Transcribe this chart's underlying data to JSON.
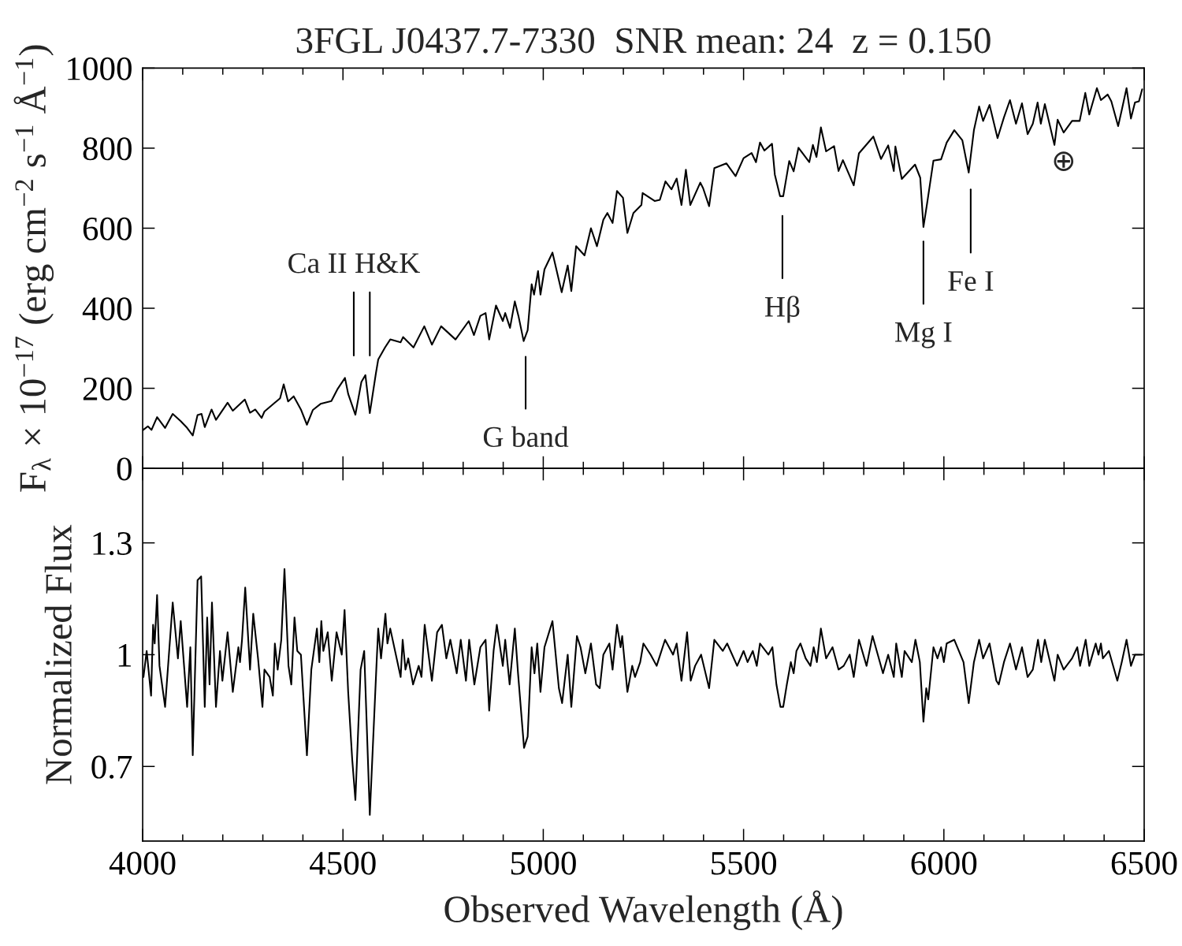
{
  "chart_data": [
    {
      "type": "line",
      "title": "3FGL J0437.7-7330  SNR mean: 24  z = 0.150",
      "ylabel": "F$_{λ}$ × 10$^{−17}$ (erg cm$^{−2}$ s$^{−1}$ Å$^{−1}$)",
      "xlim": [
        4000,
        6500
      ],
      "xticks": [
        4000,
        {
          "value": 4100,
          "label": null
        },
        {
          "value": 4200,
          "label": null
        },
        {
          "value": 4300,
          "label": null
        },
        {
          "value": 4400,
          "label": null
        },
        4500,
        {
          "value": 4600,
          "label": null
        },
        {
          "value": 4700,
          "label": null
        },
        {
          "value": 4800,
          "label": null
        },
        {
          "value": 4900,
          "label": null
        },
        5000,
        {
          "value": 5100,
          "label": null
        },
        {
          "value": 5200,
          "label": null
        },
        {
          "value": 5300,
          "label": null
        },
        {
          "value": 5400,
          "label": null
        },
        5500,
        {
          "value": 5600,
          "label": null
        },
        {
          "value": 5700,
          "label": null
        },
        {
          "value": 5800,
          "label": null
        },
        {
          "value": 5900,
          "label": null
        },
        6000,
        {
          "value": 6100,
          "label": null
        },
        {
          "value": 6200,
          "label": null
        },
        {
          "value": 6300,
          "label": null
        },
        {
          "value": 6400,
          "label": null
        },
        6500
      ],
      "ylim": [
        0,
        1000
      ],
      "yticks": [
        0,
        200,
        400,
        600,
        800,
        1000
      ],
      "tick_labels": "y",
      "series": [
        {
          "color": "#000000",
          "x": [
            4000,
            4013,
            4022,
            4036,
            4056,
            4075,
            4095,
            4111,
            4125,
            4137,
            4147,
            4155,
            4172,
            4183,
            4212,
            4225,
            4255,
            4268,
            4281,
            4297,
            4304,
            4330,
            4343,
            4352,
            4363,
            4377,
            4395,
            4410,
            4425,
            4444,
            4471,
            4487,
            4505,
            4513,
            4531,
            4546,
            4556,
            4567,
            4582,
            4588,
            4605,
            4618,
            4644,
            4650,
            4676,
            4703,
            4722,
            4745,
            4781,
            4814,
            4827,
            4843,
            4856,
            4865,
            4882,
            4899,
            4905,
            4917,
            4929,
            4938,
            4951,
            4961,
            4971,
            4977,
            4987,
            4993,
            5003,
            5023,
            5046,
            5061,
            5070,
            5082,
            5103,
            5119,
            5134,
            5150,
            5160,
            5173,
            5184,
            5199,
            5210,
            5225,
            5245,
            5248,
            5278,
            5291,
            5305,
            5320,
            5333,
            5345,
            5356,
            5367,
            5392,
            5399,
            5414,
            5427,
            5457,
            5480,
            5500,
            5520,
            5531,
            5541,
            5552,
            5571,
            5578,
            5591,
            5599,
            5614,
            5625,
            5637,
            5664,
            5673,
            5682,
            5693,
            5706,
            5726,
            5737,
            5748,
            5775,
            5788,
            5824,
            5843,
            5861,
            5875,
            5879,
            5895,
            5928,
            5941,
            5949,
            5958,
            5974,
            5993,
            6007,
            6026,
            6046,
            6062,
            6075,
            6088,
            6098,
            6114,
            6134,
            6150,
            6165,
            6180,
            6195,
            6209,
            6222,
            6234,
            6242,
            6252,
            6276,
            6284,
            6299,
            6320,
            6339,
            6353,
            6363,
            6382,
            6392,
            6409,
            6418,
            6435,
            6444,
            6456,
            6467,
            6477,
            6487,
            6495
          ],
          "values": [
            95,
            105,
            96,
            128,
            101,
            136,
            118,
            101,
            82,
            133,
            136,
            103,
            147,
            121,
            164,
            144,
            172,
            139,
            147,
            126,
            142,
            164,
            175,
            210,
            167,
            180,
            147,
            109,
            146,
            161,
            168,
            199,
            226,
            186,
            134,
            216,
            233,
            138,
            236,
            272,
            302,
            322,
            315,
            328,
            302,
            355,
            309,
            355,
            322,
            368,
            333,
            381,
            388,
            322,
            407,
            368,
            388,
            351,
            417,
            381,
            318,
            345,
            460,
            434,
            493,
            434,
            497,
            539,
            440,
            507,
            443,
            555,
            532,
            600,
            555,
            621,
            638,
            613,
            693,
            676,
            588,
            638,
            658,
            688,
            668,
            671,
            717,
            697,
            724,
            658,
            746,
            658,
            714,
            700,
            655,
            750,
            762,
            730,
            775,
            788,
            765,
            814,
            794,
            811,
            734,
            680,
            680,
            768,
            742,
            801,
            765,
            808,
            778,
            852,
            792,
            805,
            743,
            770,
            707,
            787,
            829,
            773,
            807,
            743,
            804,
            723,
            759,
            726,
            603,
            661,
            769,
            772,
            814,
            845,
            820,
            739,
            845,
            904,
            868,
            908,
            825,
            877,
            920,
            861,
            912,
            835,
            861,
            914,
            861,
            910,
            808,
            871,
            839,
            868,
            868,
            938,
            884,
            950,
            920,
            934,
            917,
            855,
            895,
            950,
            874,
            914,
            917,
            947
          ]
        },
        {
          "type": "line",
          "color": "#000000",
          "x": [
            4527,
            4527
          ],
          "values": [
            282,
            440
          ]
        },
        {
          "type": "line",
          "color": "#000000",
          "x": [
            4567,
            4567
          ],
          "values": [
            282,
            440
          ]
        },
        {
          "type": "line",
          "color": "#000000",
          "x": [
            4956,
            4956
          ],
          "values": [
            149,
            279
          ]
        },
        {
          "type": "line",
          "color": "#000000",
          "x": [
            5597,
            5597
          ],
          "values": [
            475,
            631
          ]
        },
        {
          "type": "line",
          "color": "#000000",
          "x": [
            5949,
            5949
          ],
          "values": [
            411,
            567
          ]
        },
        {
          "type": "line",
          "color": "#000000",
          "x": [
            6067,
            6067
          ],
          "values": [
            539,
            697
          ]
        }
      ],
      "annotations": [
        {
          "text": "Ca II H&K",
          "x": 4527,
          "y": 440
        },
        {
          "text": "G band",
          "x": 4956,
          "y": 149
        },
        {
          "text": "Hβ",
          "x": 5597,
          "y": 475
        },
        {
          "text": "Mg I",
          "x": 5949,
          "y": 411
        },
        {
          "text": "Fe I",
          "x": 6067,
          "y": 539
        },
        {
          "text": "⊕",
          "x": 6299,
          "y": 839
        }
      ]
    },
    {
      "type": "line",
      "xlabel": "Observed Wavelength (Å)",
      "ylabel": "Normalized Flux",
      "xlim": [
        4000,
        6500
      ],
      "xticks": [
        4000,
        {
          "value": 4100,
          "label": null
        },
        {
          "value": 4200,
          "label": null
        },
        {
          "value": 4300,
          "label": null
        },
        {
          "value": 4400,
          "label": null
        },
        4500,
        {
          "value": 4600,
          "label": null
        },
        {
          "value": 4700,
          "label": null
        },
        {
          "value": 4800,
          "label": null
        },
        {
          "value": 4900,
          "label": null
        },
        5000,
        {
          "value": 5100,
          "label": null
        },
        {
          "value": 5200,
          "label": null
        },
        {
          "value": 5300,
          "label": null
        },
        {
          "value": 5400,
          "label": null
        },
        5500,
        {
          "value": 5600,
          "label": null
        },
        {
          "value": 5700,
          "label": null
        },
        {
          "value": 5800,
          "label": null
        },
        {
          "value": 5900,
          "label": null
        },
        6000,
        {
          "value": 6100,
          "label": null
        },
        {
          "value": 6200,
          "label": null
        },
        {
          "value": 6300,
          "label": null
        },
        {
          "value": 6400,
          "label": null
        },
        6500
      ],
      "ylim": [
        0.5,
        1.5
      ],
      "yticks": [
        0.7,
        1,
        1.3
      ],
      "series": [
        {
          "color": "#000000",
          "x": [
            4002,
            4010,
            4021,
            4026,
            4030,
            4036,
            4042,
            4056,
            4075,
            4088,
            4095,
            4111,
            4119,
            4125,
            4137,
            4146,
            4155,
            4161,
            4167,
            4173,
            4183,
            4193,
            4199,
            4212,
            4225,
            4239,
            4243,
            4248,
            4256,
            4268,
            4276,
            4288,
            4299,
            4304,
            4317,
            4325,
            4330,
            4337,
            4346,
            4354,
            4364,
            4371,
            4379,
            4386,
            4395,
            4410,
            4421,
            4435,
            4441,
            4446,
            4451,
            4462,
            4472,
            4484,
            4497,
            4504,
            4513,
            4523,
            4531,
            4544,
            4553,
            4567,
            4584,
            4588,
            4595,
            4606,
            4611,
            4618,
            4644,
            4649,
            4656,
            4663,
            4675,
            4689,
            4696,
            4704,
            4722,
            4735,
            4747,
            4758,
            4768,
            4784,
            4794,
            4807,
            4815,
            4828,
            4843,
            4856,
            4865,
            4876,
            4884,
            4899,
            4905,
            4916,
            4929,
            4937,
            4952,
            4961,
            4971,
            4978,
            4985,
            4993,
            5003,
            5023,
            5039,
            5047,
            5061,
            5070,
            5084,
            5093,
            5105,
            5119,
            5132,
            5141,
            5150,
            5165,
            5173,
            5184,
            5193,
            5197,
            5210,
            5222,
            5229,
            5242,
            5250,
            5268,
            5283,
            5304,
            5324,
            5333,
            5345,
            5359,
            5368,
            5379,
            5394,
            5414,
            5427,
            5448,
            5459,
            5484,
            5500,
            5510,
            5523,
            5533,
            5541,
            5562,
            5572,
            5582,
            5592,
            5599,
            5608,
            5618,
            5625,
            5632,
            5642,
            5655,
            5667,
            5675,
            5683,
            5693,
            5706,
            5722,
            5737,
            5750,
            5765,
            5775,
            5788,
            5807,
            5822,
            5848,
            5861,
            5875,
            5881,
            5895,
            5902,
            5920,
            5929,
            5940,
            5949,
            5956,
            5961,
            5974,
            5984,
            5993,
            6000,
            6007,
            6026,
            6049,
            6062,
            6075,
            6088,
            6098,
            6114,
            6131,
            6137,
            6150,
            6165,
            6180,
            6195,
            6209,
            6222,
            6235,
            6243,
            6252,
            6276,
            6284,
            6299,
            6320,
            6333,
            6340,
            6354,
            6363,
            6379,
            6386,
            6392,
            6397,
            6412,
            6433,
            6444,
            6456,
            6467,
            6477,
            6494
          ],
          "values": [
            0.94,
            1.01,
            0.89,
            1.08,
            1.03,
            1.16,
            0.97,
            0.86,
            1.14,
            0.99,
            1.09,
            0.86,
            1.02,
            0.73,
            1.2,
            1.21,
            0.86,
            1.1,
            0.92,
            1.14,
            0.86,
            1.01,
            0.93,
            1.06,
            0.9,
            1.02,
            0.98,
            1.04,
            1.18,
            0.96,
            1.11,
            0.99,
            0.86,
            0.96,
            0.94,
            0.89,
            1.03,
            0.96,
            1.04,
            1.23,
            0.97,
            0.92,
            1.1,
            1.01,
            1.0,
            0.73,
            0.96,
            1.07,
            0.98,
            1.09,
            1.01,
            1.06,
            0.93,
            1.06,
            1.0,
            1.12,
            0.9,
            0.72,
            0.61,
            0.96,
            1.01,
            0.57,
            0.98,
            1.07,
            0.99,
            1.11,
            1.03,
            1.07,
            0.94,
            1.04,
            0.96,
            0.99,
            0.92,
            0.97,
            0.94,
            1.08,
            0.93,
            1.06,
            1.08,
            0.99,
            1.04,
            0.95,
            1.04,
            0.93,
            1.04,
            0.92,
            1.02,
            1.04,
            0.85,
            1.01,
            1.08,
            0.97,
            1.04,
            0.92,
            1.07,
            0.95,
            0.75,
            0.78,
            1.02,
            0.95,
            1.03,
            0.9,
            1.02,
            1.09,
            0.91,
            0.87,
            1.0,
            0.86,
            1.05,
            1.02,
            0.95,
            1.03,
            0.92,
            0.91,
            1.0,
            1.03,
            0.96,
            1.08,
            1.02,
            1.05,
            0.9,
            0.97,
            0.94,
            0.98,
            1.03,
            1.0,
            0.97,
            1.04,
            1.0,
            1.03,
            0.93,
            1.06,
            0.93,
            0.97,
            1.0,
            0.91,
            1.04,
            1.01,
            1.03,
            0.97,
            1.01,
            0.98,
            1.01,
            0.97,
            1.03,
            1.0,
            1.02,
            0.92,
            0.86,
            0.86,
            0.92,
            0.98,
            0.95,
            1.01,
            1.03,
            0.99,
            0.97,
            1.02,
            0.98,
            1.07,
            0.99,
            1.02,
            0.96,
            0.97,
            1.0,
            0.94,
            1.04,
            0.97,
            1.05,
            0.95,
            1.0,
            0.94,
            1.03,
            0.94,
            1.01,
            0.98,
            1.04,
            0.98,
            0.82,
            0.91,
            0.88,
            1.02,
            0.99,
            1.02,
            0.98,
            1.03,
            1.04,
            0.98,
            0.87,
            0.98,
            1.04,
            0.99,
            1.03,
            0.93,
            0.92,
            0.98,
            1.03,
            0.96,
            1.02,
            0.94,
            0.96,
            1.04,
            0.98,
            1.04,
            0.93,
            1.0,
            0.96,
            0.99,
            1.02,
            0.97,
            1.04,
            0.97,
            1.03,
            1.0,
            1.03,
            0.99,
            1.01,
            0.93,
            0.98,
            1.04,
            0.97,
            1.0,
            1.0
          ]
        }
      ]
    }
  ]
}
